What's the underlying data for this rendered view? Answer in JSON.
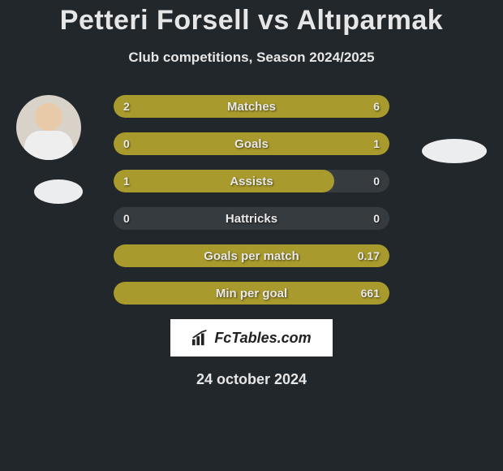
{
  "title_text": "Petteri Forsell vs Altıparmak",
  "subtitle_text": "Club competitions, Season 2024/2025",
  "date_text": "24 october 2024",
  "logo_text": "FcTables.com",
  "colors": {
    "bg": "#22272b",
    "bar_track": "#363b3f",
    "bar_fill": "#a89a2c",
    "text": "#e6e6e6"
  },
  "stats": [
    {
      "label": "Matches",
      "left_val": "2",
      "right_val": "6",
      "left_pct": 25,
      "right_pct": 75,
      "mode": "split"
    },
    {
      "label": "Goals",
      "left_val": "0",
      "right_val": "1",
      "left_pct": 0,
      "right_pct": 100,
      "mode": "right-full"
    },
    {
      "label": "Assists",
      "left_val": "1",
      "right_val": "0",
      "left_pct": 80,
      "right_pct": 0,
      "mode": "left-only"
    },
    {
      "label": "Hattricks",
      "left_val": "0",
      "right_val": "0",
      "left_pct": 0,
      "right_pct": 0,
      "mode": "none"
    },
    {
      "label": "Goals per match",
      "left_val": "",
      "right_val": "0.17",
      "left_pct": 0,
      "right_pct": 100,
      "mode": "right-full"
    },
    {
      "label": "Min per goal",
      "left_val": "",
      "right_val": "661",
      "left_pct": 0,
      "right_pct": 100,
      "mode": "right-full"
    }
  ]
}
